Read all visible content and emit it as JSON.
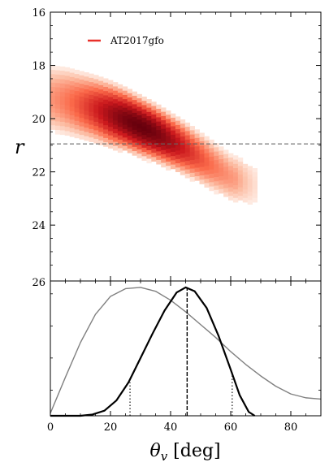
{
  "chart_data": [
    {
      "type": "heatmap",
      "ylabel": "r",
      "ylim": [
        16,
        26.1
      ],
      "y_inverted": true,
      "xlim": [
        0,
        90
      ],
      "yticks": [
        16,
        18,
        20,
        22,
        24
      ],
      "tick_labels": [
        "16",
        "18",
        "20",
        "22",
        "24"
      ],
      "legend": {
        "label": "AT2017gfo",
        "color": "#e8302a",
        "placement": "top-left"
      },
      "hline": {
        "y": 20.95,
        "style": "dashed",
        "color": "#666666"
      },
      "colormap": [
        "#fff5f0",
        "#fcbba1",
        "#fb6a4a",
        "#cb181d",
        "#67000d"
      ],
      "density_band": {
        "theta": [
          0,
          5,
          10,
          15,
          20,
          25,
          30,
          35,
          40,
          45,
          50,
          55,
          60,
          65,
          68
        ],
        "r_center": [
          19.25,
          19.35,
          19.5,
          19.65,
          19.85,
          20.05,
          20.3,
          20.55,
          20.85,
          21.15,
          21.5,
          21.85,
          22.2,
          22.4,
          22.5
        ],
        "r_halfwidth": [
          1.25,
          1.3,
          1.3,
          1.3,
          1.3,
          1.25,
          1.2,
          1.15,
          1.1,
          1.05,
          1.0,
          0.95,
          0.9,
          0.85,
          0.8
        ],
        "peak_theta": 30,
        "peak_r": 20.35
      }
    },
    {
      "type": "line",
      "xlabel": "θ_v [deg]",
      "xlim": [
        0,
        90
      ],
      "ylim": [
        0,
        1.05
      ],
      "xticks": [
        0,
        20,
        40,
        60,
        80
      ],
      "xtick_labels": [
        "0",
        "20",
        "40",
        "60",
        "80"
      ],
      "ytick_label": "26",
      "series": [
        {
          "color": "#808080",
          "x": [
            0,
            5,
            10,
            15,
            20,
            25,
            30,
            35,
            40,
            45,
            50,
            55,
            60,
            65,
            70,
            75,
            80,
            85,
            90
          ],
          "y": [
            0.02,
            0.3,
            0.57,
            0.79,
            0.93,
            0.99,
            1.0,
            0.97,
            0.9,
            0.81,
            0.71,
            0.61,
            0.5,
            0.4,
            0.31,
            0.23,
            0.17,
            0.14,
            0.13
          ]
        },
        {
          "color": "#000000",
          "x": [
            0,
            10,
            14,
            18,
            22,
            26,
            30,
            34,
            38,
            42,
            45,
            48,
            52,
            56,
            60,
            63,
            66,
            68
          ],
          "y": [
            0,
            0,
            0.01,
            0.04,
            0.12,
            0.26,
            0.45,
            0.64,
            0.82,
            0.96,
            1.0,
            0.97,
            0.84,
            0.62,
            0.36,
            0.16,
            0.03,
            0
          ]
        }
      ],
      "vlines": [
        {
          "x": 45.5,
          "style": "dashed",
          "y": 1.0
        },
        {
          "x": 26.5,
          "style": "dotted",
          "y": 0.26
        },
        {
          "x": 60.5,
          "style": "dotted",
          "y": 0.34
        }
      ]
    }
  ]
}
